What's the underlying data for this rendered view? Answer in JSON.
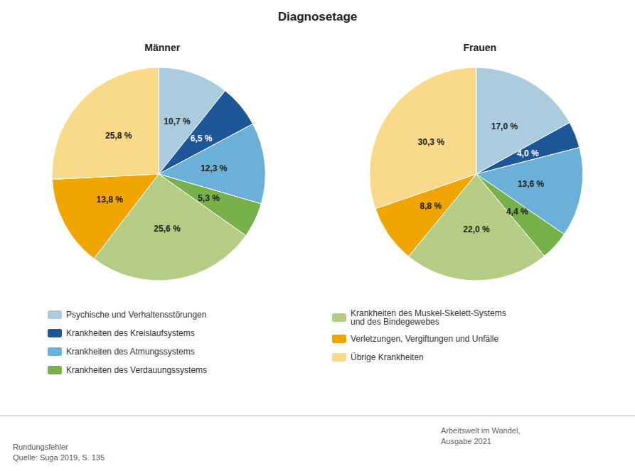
{
  "chart_data": {
    "type": "pie",
    "title": "Diagnosetage",
    "categories": [
      "Psychische und Verhaltensstörungen",
      "Krankheiten des Kreislaufsystems",
      "Krankheiten des Atmungssystems",
      "Krankheiten des Verdauungssystems",
      "Krankheiten des Muskel-Skelett-Systems\nund des Bindegewebes",
      "Verletzungen, Vergiftungen und Unfälle",
      "Übrige Krankheiten"
    ],
    "colors": [
      "#aaccde",
      "#1e5799",
      "#6ab0d8",
      "#78b04a",
      "#b5cc84",
      "#f0a500",
      "#f9d98a"
    ],
    "series": [
      {
        "name": "Männer",
        "values": [
          10.7,
          6.5,
          12.3,
          5.3,
          25.6,
          13.8,
          25.8
        ],
        "value_labels": [
          "10,7 %",
          "6,5 %",
          "12,3 %",
          "5,3 %",
          "25,6 %",
          "13,8 %",
          "25,8 %"
        ]
      },
      {
        "name": "Frauen",
        "values": [
          17.0,
          4.0,
          13.6,
          4.4,
          22.0,
          8.8,
          30.3
        ],
        "value_labels": [
          "17,0 %",
          "4,0 %",
          "13,6 %",
          "4,4 %",
          "22,0 %",
          "8,8 %",
          "30,3 %"
        ]
      }
    ],
    "data_labels": true,
    "legend": "bottom",
    "annotations": [
      "Rundungsfehler\nQuelle: Suga 2019, S. 135",
      "Arbeitswelt im Wandel,\nAusgabe 2021"
    ]
  }
}
